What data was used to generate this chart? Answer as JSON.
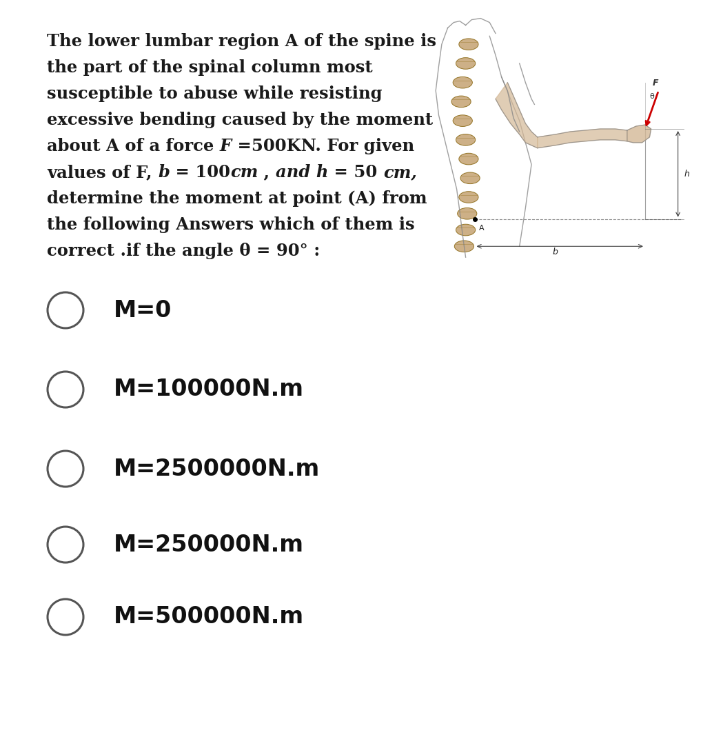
{
  "bg_color": "#ffffff",
  "text_color": "#1a1a1a",
  "gray_color": "#555555",
  "options": [
    "M=0",
    "M=100000N.m",
    "M=2500000N.m",
    "M=250000N.m",
    "M=500000N.m"
  ],
  "question_lines": [
    "The lower lumbar region A of the spine is",
    "the part of the spinal column most",
    "susceptible to abuse while resisting",
    "excessive bending caused by the moment",
    "about A of a force F =500KN. For given",
    "values of F, b = 100cm , and h = 50 cm,",
    "determine the moment at point (A) from",
    "the following Answers which of them is",
    "correct .if the angle θ = 90° :"
  ],
  "mixed_lines": [
    [
      "The lower lumbar region A of the spine is",
      "normal"
    ],
    [
      "the part of the spinal column most",
      "normal"
    ],
    [
      "susceptible to abuse while resisting",
      "normal"
    ],
    [
      "excessive bending caused by the moment",
      "normal"
    ],
    [
      "about A of a force ",
      "normal"
    ],
    [
      "values of F, ",
      "normal"
    ],
    [
      "determine the moment at point (A) from",
      "normal"
    ],
    [
      "the following Answers which of them is",
      "normal"
    ],
    [
      "correct .if the angle θ = 90° :",
      "normal"
    ]
  ],
  "spine_color": "#C8A87A",
  "spine_edge": "#8B6914",
  "body_line_color": "#888888",
  "arrow_color": "#CC0000",
  "dim_line_color": "#444444",
  "dashed_color": "#777777"
}
